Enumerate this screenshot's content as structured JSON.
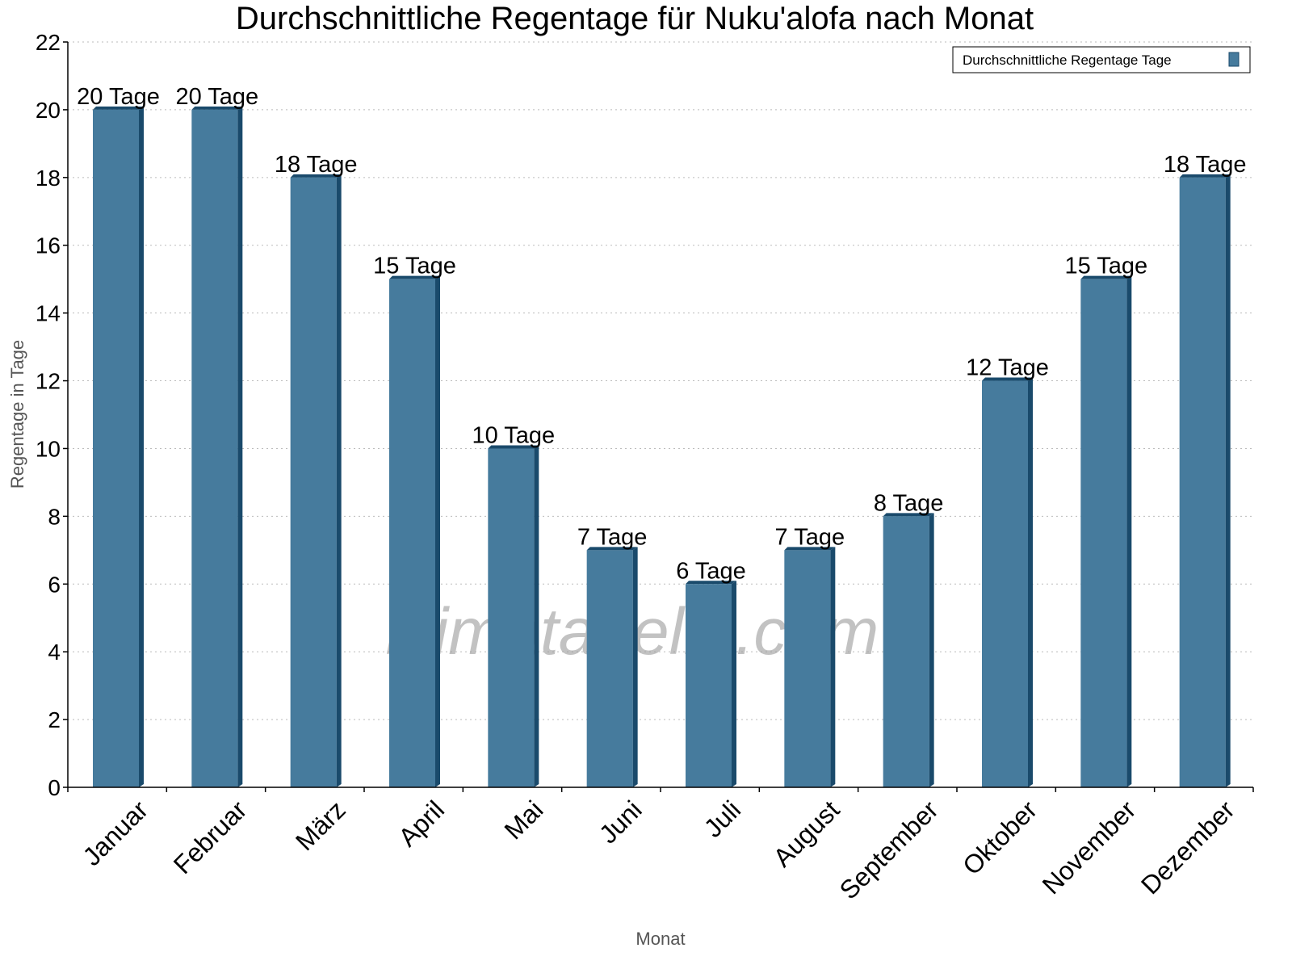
{
  "chart_data": {
    "type": "bar",
    "title": "Durchschnittliche Regentage für Nuku'alofa nach Monat",
    "xlabel": "Monat",
    "ylabel": "Regentage in Tage",
    "ylim": [
      0,
      22
    ],
    "yticks": [
      0,
      2,
      4,
      6,
      8,
      10,
      12,
      14,
      16,
      18,
      20,
      22
    ],
    "grid": true,
    "legend_position": "top-right",
    "categories": [
      "Januar",
      "Februar",
      "März",
      "April",
      "Mai",
      "Juni",
      "Juli",
      "August",
      "September",
      "Oktober",
      "November",
      "Dezember"
    ],
    "series": [
      {
        "name": "Durchschnittliche Regentage Tage",
        "values": [
          20,
          20,
          18,
          15,
          10,
          7,
          6,
          7,
          8,
          12,
          15,
          18
        ],
        "data_labels": [
          "20 Tage",
          "20 Tage",
          "18 Tage",
          "15 Tage",
          "10 Tage",
          "7 Tage",
          "6 Tage",
          "7 Tage",
          "8 Tage",
          "12 Tage",
          "15 Tage",
          "18 Tage"
        ],
        "color": "#467b9d",
        "side_color": "#1a4a6b"
      }
    ],
    "watermark": "klimatabelle.com"
  }
}
